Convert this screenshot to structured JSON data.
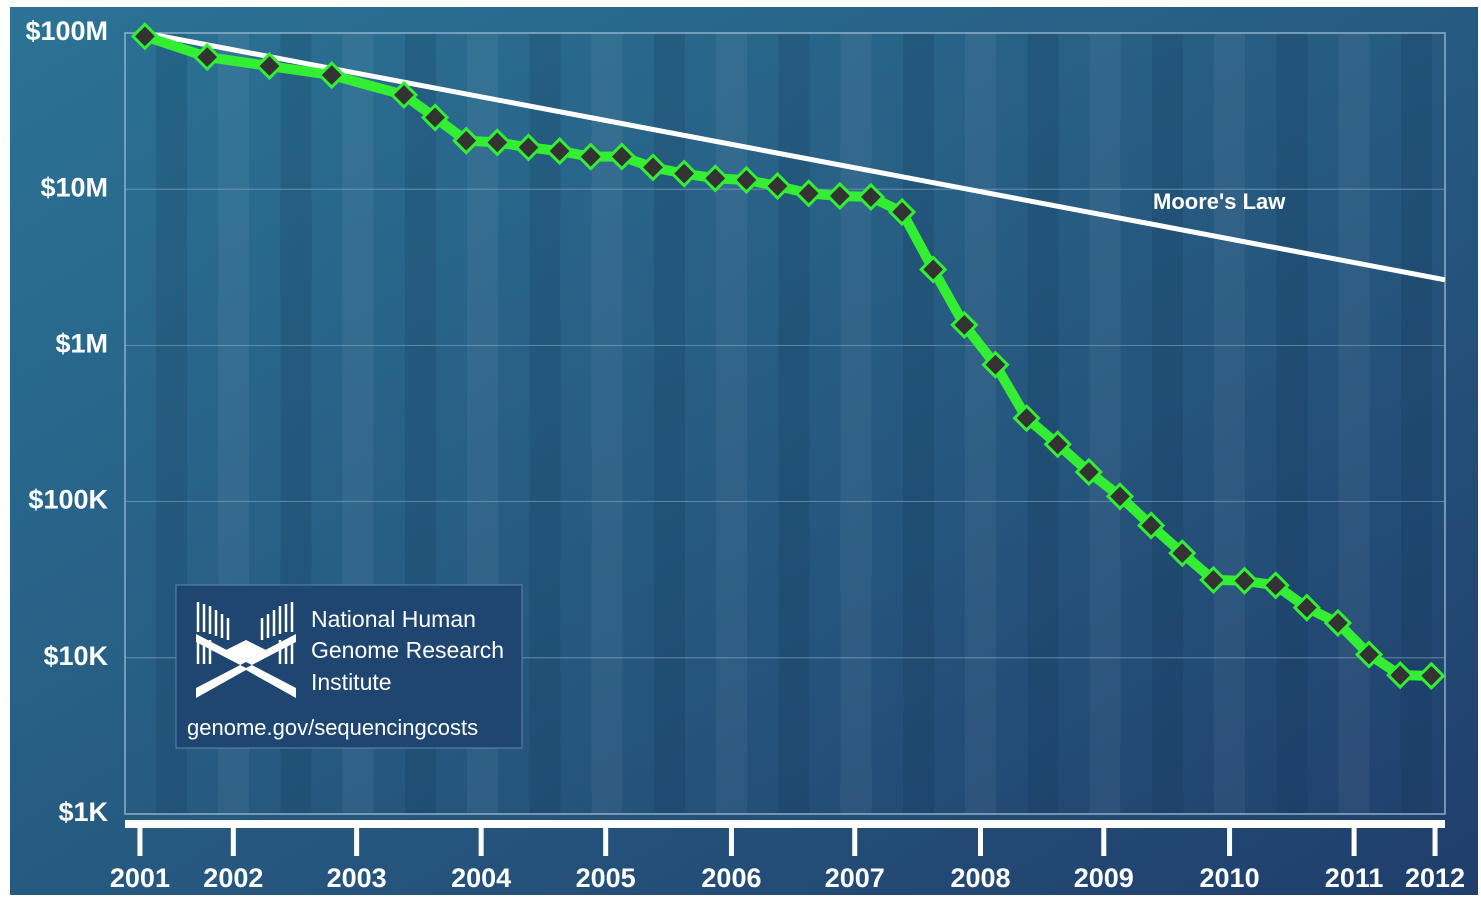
{
  "chart_data": {
    "type": "line",
    "log_y": true,
    "xlim": [
      2001.51,
      2012.11
    ],
    "ylim": [
      1000,
      100000000
    ],
    "xticks": [
      {
        "value": 2001.63,
        "label": "2001"
      },
      {
        "value": 2002.38,
        "label": "2002"
      },
      {
        "value": 2003.37,
        "label": "2003"
      },
      {
        "value": 2004.37,
        "label": "2004"
      },
      {
        "value": 2005.37,
        "label": "2005"
      },
      {
        "value": 2006.38,
        "label": "2006"
      },
      {
        "value": 2007.37,
        "label": "2007"
      },
      {
        "value": 2008.38,
        "label": "2008"
      },
      {
        "value": 2009.37,
        "label": "2009"
      },
      {
        "value": 2010.38,
        "label": "2010"
      },
      {
        "value": 2011.38,
        "label": "2011"
      },
      {
        "value": 2012.03,
        "label": "2012"
      }
    ],
    "yticks": [
      {
        "value": 100000000,
        "label": "$100M"
      },
      {
        "value": 10000000,
        "label": "$10M"
      },
      {
        "value": 1000000,
        "label": "$1M"
      },
      {
        "value": 100000,
        "label": "$100K"
      },
      {
        "value": 10000,
        "label": "$10K"
      },
      {
        "value": 1000,
        "label": "$1K"
      }
    ],
    "grid": true,
    "series": [
      {
        "name": "Moore's Law",
        "color": "#ffffff",
        "x": [
          2001.67,
          2012.11
        ],
        "values": [
          100000000,
          2630000
        ]
      },
      {
        "color": "#33ee33",
        "marker_color": "#333333",
        "x": [
          2001.67,
          2002.17,
          2002.67,
          2003.17,
          2003.75,
          2004.0,
          2004.25,
          2004.5,
          2004.75,
          2005.0,
          2005.25,
          2005.5,
          2005.75,
          2006.0,
          2006.25,
          2006.5,
          2006.75,
          2007.0,
          2007.25,
          2007.5,
          2007.75,
          2008.0,
          2008.25,
          2008.5,
          2008.75,
          2009.0,
          2009.25,
          2009.5,
          2009.75,
          2010.0,
          2010.25,
          2010.5,
          2010.75,
          2011.0,
          2011.25,
          2011.5,
          2011.75,
          2012.0
        ],
        "values": [
          95263072,
          70175437,
          61448422,
          53751684,
          40157554,
          28780376,
          20442576,
          19934346,
          18519312,
          17534970,
          16159699,
          16180224,
          13801124,
          12585659,
          11732535,
          11455315,
          10474556,
          9408739,
          9047003,
          8927342,
          7147571,
          3063820,
          1352982,
          752080,
          342502,
          232735,
          154714,
          108065,
          70333,
          46774,
          31512,
          31125,
          29092,
          20963,
          16712,
          10497,
          7743,
          7666
        ]
      }
    ],
    "logo": {
      "lines": [
        "National Human",
        "Genome Research",
        "Institute"
      ],
      "url": "genome.gov/sequencingcosts"
    }
  }
}
